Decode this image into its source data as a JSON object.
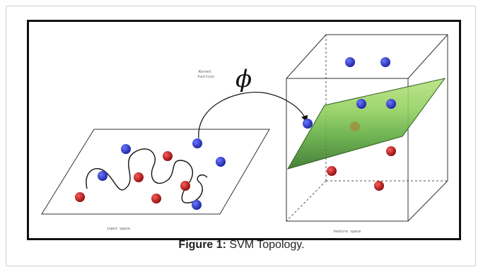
{
  "figure": {
    "caption_label": "Figure 1:",
    "caption_text": " SVM Topology.",
    "phi_symbol": "ϕ",
    "kernel_label_line1": "Kernel",
    "kernel_label_line2": "function",
    "input_space_label": "input space",
    "feature_space_label": "feature space"
  },
  "colors": {
    "blue_point": "#2b35c0",
    "red_point": "#c01a1a",
    "hyperplane_green": "#7fc95a"
  }
}
